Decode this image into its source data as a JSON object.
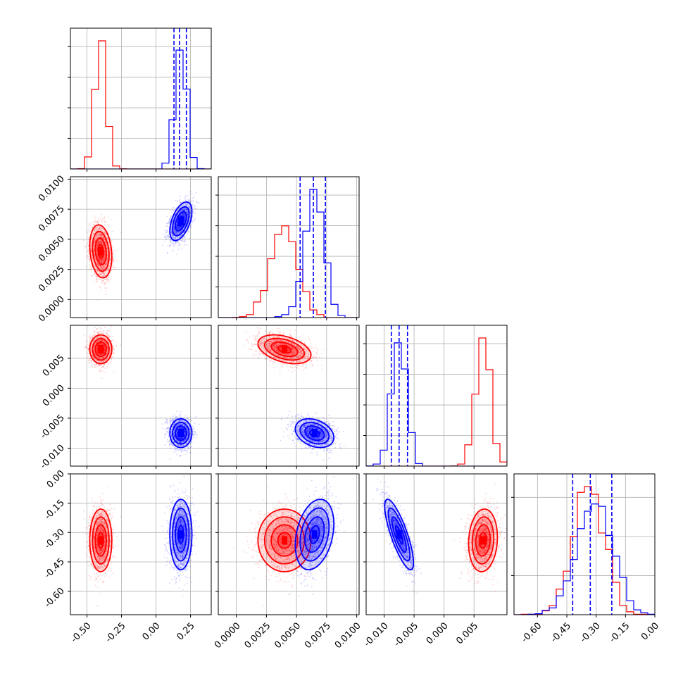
{
  "colors": {
    "red": "#ff0000",
    "blue": "#0000ff"
  },
  "chart_data": {
    "type": "corner",
    "grid": true,
    "series": [
      {
        "color": "#ff0000",
        "means": [
          -0.4,
          0.004,
          0.0065,
          -0.34
        ],
        "sds": [
          0.04,
          0.0011,
          0.0012,
          0.08
        ],
        "corr": [
          [
            0,
            1,
            -0.2
          ],
          [
            0,
            2,
            0.0
          ],
          [
            0,
            3,
            0.0
          ],
          [
            1,
            2,
            -0.4
          ],
          [
            1,
            3,
            0.0
          ],
          [
            2,
            3,
            0.1
          ]
        ]
      },
      {
        "color": "#0000ff",
        "means": [
          0.18,
          0.0065,
          -0.0075,
          -0.31
        ],
        "sds": [
          0.04,
          0.0008,
          0.0012,
          0.09
        ],
        "corr": [
          [
            0,
            1,
            0.5
          ],
          [
            0,
            2,
            0.0
          ],
          [
            0,
            3,
            0.0
          ],
          [
            1,
            2,
            -0.3
          ],
          [
            1,
            3,
            0.3
          ],
          [
            2,
            3,
            -0.8
          ]
        ]
      }
    ],
    "quantile_lines": [
      [
        0.13,
        0.17,
        0.22
      ],
      [
        0.0053,
        0.0064,
        0.0074
      ],
      [
        -0.0088,
        -0.0075,
        -0.0061
      ],
      [
        -0.42,
        -0.33,
        -0.22
      ]
    ],
    "axes": [
      {
        "range": [
          -0.62,
          0.4
        ],
        "ticks": [
          "-0.50",
          "-0.25",
          "0.00",
          "0.25"
        ],
        "tick_values": [
          -0.5,
          -0.25,
          0.0,
          0.25
        ]
      },
      {
        "range": [
          -0.0015,
          0.0102
        ],
        "ticks": [
          "0.0000",
          "0.0025",
          "0.0050",
          "0.0075",
          "0.0100"
        ],
        "tick_values": [
          0.0,
          0.0025,
          0.005,
          0.0075,
          0.01
        ]
      },
      {
        "range": [
          -0.013,
          0.0105
        ],
        "ticks": [
          "-0.010",
          "-0.005",
          "0.000",
          "0.005"
        ],
        "tick_values": [
          -0.01,
          -0.005,
          0.0,
          0.005
        ]
      },
      {
        "range": [
          -0.72,
          0.0
        ],
        "ticks": [
          "-0.60",
          "-0.45",
          "-0.30",
          "-0.15",
          "0.00"
        ],
        "tick_values": [
          -0.6,
          -0.45,
          -0.3,
          -0.15,
          0.0
        ]
      }
    ],
    "hist_ticks_y": [
      4,
      4,
      4,
      3
    ]
  }
}
